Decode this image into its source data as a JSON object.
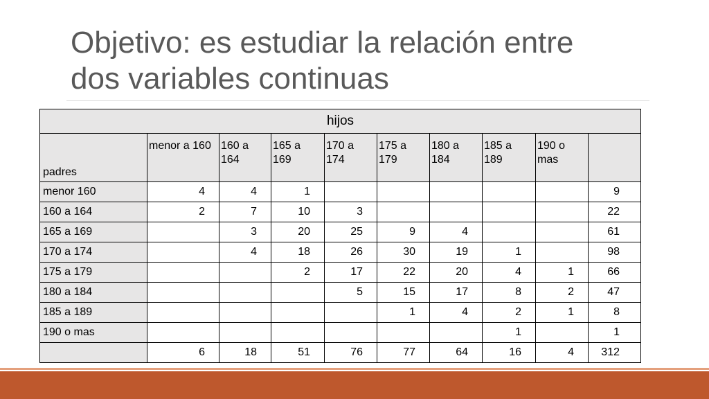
{
  "slide": {
    "title_line1": "Objetivo: es estudiar la relación entre",
    "title_line2": "dos variables continuas"
  },
  "table": {
    "top_header": "hijos",
    "corner_label": "padres",
    "column_labels": [
      " menor a 160",
      "160 a 164",
      "165 a 169",
      "170 a 174",
      "175 a 179",
      "180 a 184",
      "185 a 189",
      "190 o mas",
      ""
    ],
    "rows": [
      {
        "label": "menor 160",
        "cells": [
          "4",
          "4",
          "1",
          "",
          "",
          "",
          "",
          "",
          "9"
        ]
      },
      {
        "label": "160 a 164",
        "cells": [
          "2",
          "7",
          "10",
          "3",
          "",
          "",
          "",
          "",
          "22"
        ]
      },
      {
        "label": "165 a 169",
        "cells": [
          "",
          "3",
          "20",
          "25",
          "9",
          "4",
          "",
          "",
          "61"
        ]
      },
      {
        "label": "170 a 174",
        "cells": [
          "",
          "4",
          "18",
          "26",
          "30",
          "19",
          "1",
          "",
          "98"
        ]
      },
      {
        "label": "175 a 179",
        "cells": [
          "",
          "",
          "2",
          "17",
          "22",
          "20",
          "4",
          "1",
          "66"
        ]
      },
      {
        "label": "180 a 184",
        "cells": [
          "",
          "",
          "",
          "5",
          "15",
          "17",
          "8",
          "2",
          "47"
        ]
      },
      {
        "label": "185 a 189",
        "cells": [
          "",
          "",
          "",
          "",
          "1",
          "4",
          "2",
          "1",
          "8"
        ]
      },
      {
        "label": " 190 o mas",
        "cells": [
          "",
          "",
          "",
          "",
          "",
          "",
          "1",
          "",
          "1"
        ]
      },
      {
        "label": "",
        "cells": [
          "6",
          "18",
          "51",
          "76",
          "77",
          "64",
          "16",
          "4",
          "312"
        ]
      }
    ]
  },
  "theme": {
    "accent_color": "#be582d",
    "title_color": "#595959"
  }
}
